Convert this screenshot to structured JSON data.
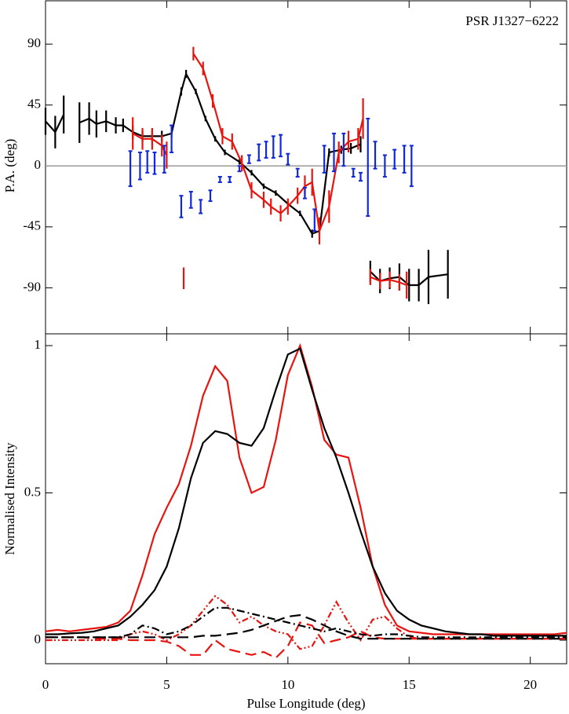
{
  "chart_data": [
    {
      "type": "errorbar-line",
      "title": "PSR J1327−6222",
      "ylabel": "P.A. (deg)",
      "xlim": [
        0,
        21.5
      ],
      "ylim": [
        -124,
        122
      ],
      "yticks": [
        -90,
        -45,
        0,
        45,
        90
      ],
      "reference_line": 0,
      "series": [
        {
          "color": "#000000",
          "line": true,
          "x": [
            0,
            0.4,
            0.75,
            null,
            1.4,
            1.8,
            2.1,
            2.5,
            2.9,
            3.2,
            3.6,
            4.0,
            4.4,
            4.8,
            5.2,
            5.6,
            5.8,
            6.2,
            6.6,
            7.0,
            7.4,
            8.0,
            8.5,
            9.0,
            9.5,
            10.0,
            10.5,
            11.0,
            11.3,
            11.7,
            12.2,
            12.6,
            13.0,
            null,
            13.4,
            13.8,
            14.2,
            14.6,
            15.0,
            15.4,
            15.8,
            16.6
          ],
          "values": [
            33,
            25,
            38,
            null,
            32,
            35,
            31,
            33,
            30,
            30,
            25,
            22,
            22,
            22,
            24,
            55,
            68,
            55,
            35,
            20,
            10,
            3,
            -5,
            -15,
            -20,
            -28,
            -35,
            -50,
            -48,
            10,
            12,
            13,
            16,
            null,
            -78,
            -85,
            -83,
            -82,
            -88,
            -88,
            -82,
            -80
          ],
          "errors": [
            10,
            12,
            14,
            null,
            15,
            12,
            10,
            8,
            6,
            5,
            5,
            4,
            4,
            4,
            3,
            3,
            3,
            2,
            2,
            2,
            2,
            2,
            2,
            2,
            2,
            2,
            2,
            3,
            3,
            3,
            3,
            4,
            6,
            null,
            8,
            9,
            8,
            10,
            12,
            12,
            20,
            18
          ]
        },
        {
          "color": "#e8140f",
          "line": true,
          "x": [
            3.6,
            4.0,
            4.4,
            4.8,
            5.0,
            null,
            5.7,
            null,
            6.1,
            6.5,
            6.9,
            7.3,
            7.7,
            8.1,
            8.5,
            9.0,
            9.3,
            9.7,
            10.0,
            10.4,
            10.7,
            11.0,
            11.3,
            11.7,
            12.1,
            12.5,
            12.9,
            13.1,
            null,
            13.4,
            13.8,
            14.2,
            14.6,
            14.9
          ],
          "values": [
            24,
            20,
            20,
            15,
            8,
            null,
            -83,
            null,
            83,
            72,
            48,
            22,
            18,
            2,
            -18,
            -25,
            -30,
            -35,
            -30,
            -22,
            -15,
            -12,
            -48,
            -30,
            10,
            18,
            20,
            35,
            null,
            -82,
            -85,
            -84,
            -86,
            -88
          ],
          "errors": [
            12,
            8,
            8,
            8,
            10,
            null,
            8,
            null,
            5,
            5,
            5,
            6,
            6,
            6,
            6,
            6,
            6,
            6,
            6,
            6,
            8,
            10,
            10,
            12,
            8,
            8,
            8,
            15,
            null,
            6,
            6,
            6,
            6,
            10
          ]
        },
        {
          "color": "#1028d8",
          "line": false,
          "x": [
            3.5,
            3.9,
            4.2,
            4.5,
            4.9,
            5.2,
            5.6,
            6.0,
            6.4,
            6.8,
            7.2,
            7.6,
            8.0,
            8.4,
            8.8,
            9.1,
            9.4,
            9.7,
            10.0,
            10.4,
            10.7,
            11.1,
            11.5,
            11.9,
            12.3,
            12.7,
            13.0,
            13.3,
            13.6,
            14.0,
            14.4,
            14.8,
            15.1
          ],
          "values": [
            -2,
            0,
            3,
            2,
            5,
            20,
            -30,
            -25,
            -30,
            -22,
            -10,
            -10,
            -2,
            5,
            10,
            12,
            14,
            15,
            5,
            -5,
            -20,
            -40,
            5,
            10,
            12,
            -5,
            -8,
            -1,
            8,
            0,
            5,
            5,
            0
          ],
          "errors": [
            13,
            10,
            8,
            8,
            10,
            10,
            8,
            6,
            5,
            4,
            2,
            2,
            2,
            3,
            6,
            6,
            8,
            8,
            4,
            3,
            4,
            8,
            10,
            14,
            12,
            3,
            3,
            36,
            10,
            8,
            7,
            10,
            15
          ]
        }
      ]
    },
    {
      "type": "line",
      "xlabel": "Pulse Longitude (deg)",
      "ylabel": "Normalised Intensity",
      "xlim": [
        0,
        21.5
      ],
      "ylim": [
        -0.08,
        1.04
      ],
      "xticks": [
        0,
        5,
        10,
        15,
        20
      ],
      "yticks": [
        0,
        0.5,
        1
      ],
      "x": [
        0,
        0.5,
        1,
        1.5,
        2,
        2.5,
        3,
        3.5,
        4,
        4.5,
        5,
        5.5,
        6,
        6.5,
        7,
        7.5,
        8,
        8.5,
        9,
        9.5,
        10,
        10.5,
        11,
        11.5,
        12,
        12.5,
        13,
        13.5,
        14,
        14.5,
        15,
        15.5,
        16,
        16.5,
        17,
        17.5,
        18,
        18.5,
        19,
        19.5,
        20,
        20.5,
        21,
        21.5
      ],
      "series": [
        {
          "color": "#000000",
          "dash": "solid",
          "values": [
            0.02,
            0.02,
            0.023,
            0.025,
            0.03,
            0.04,
            0.05,
            0.08,
            0.12,
            0.17,
            0.25,
            0.38,
            0.55,
            0.67,
            0.71,
            0.7,
            0.67,
            0.66,
            0.72,
            0.85,
            0.97,
            0.99,
            0.85,
            0.72,
            0.62,
            0.5,
            0.37,
            0.25,
            0.16,
            0.1,
            0.07,
            0.05,
            0.04,
            0.03,
            0.025,
            0.02,
            0.02,
            0.015,
            0.015,
            0.015,
            0.015,
            0.015,
            0.015,
            0.015
          ]
        },
        {
          "color": "#e8140f",
          "dash": "solid",
          "values": [
            0.03,
            0.035,
            0.03,
            0.035,
            0.04,
            0.045,
            0.06,
            0.1,
            0.22,
            0.36,
            0.45,
            0.53,
            0.66,
            0.83,
            0.93,
            0.88,
            0.62,
            0.5,
            0.52,
            0.68,
            0.9,
            1.0,
            0.86,
            0.68,
            0.63,
            0.62,
            0.45,
            0.25,
            0.12,
            0.05,
            0.03,
            0.025,
            0.02,
            0.02,
            0.02,
            0.02,
            0.02,
            0.02,
            0.02,
            0.02,
            0.02,
            0.02,
            0.02,
            0.025
          ]
        },
        {
          "color": "#000000",
          "dash": "dashed",
          "values": [
            0.01,
            0.01,
            0.01,
            0.01,
            0.01,
            0.01,
            0.01,
            0.01,
            0.01,
            0.01,
            0.01,
            0.01,
            0.01,
            0.015,
            0.015,
            0.02,
            0.025,
            0.035,
            0.05,
            0.065,
            0.08,
            0.085,
            0.07,
            0.05,
            0.03,
            0.015,
            0.005,
            0.005,
            0.005,
            0.005,
            0.005,
            0.005,
            0.005,
            0.005,
            0.005,
            0.005,
            0.005,
            0.005,
            0.005,
            0.005,
            0.005,
            0.005,
            0.005,
            0.005
          ]
        },
        {
          "color": "#000000",
          "dash": "dashdot",
          "values": [
            0.01,
            0.01,
            0.01,
            0.01,
            0.01,
            0.01,
            0.01,
            0.02,
            0.05,
            0.04,
            0.02,
            0.03,
            0.05,
            0.08,
            0.11,
            0.11,
            0.1,
            0.09,
            0.08,
            0.07,
            0.06,
            0.05,
            0.04,
            0.03,
            0.04,
            0.03,
            0.02,
            0.015,
            0.02,
            0.02,
            0.015,
            0.01,
            0.01,
            0.01,
            0.01,
            0.01,
            0.01,
            0.01,
            0.01,
            0.01,
            0.01,
            0.01,
            0.01,
            0.01
          ]
        },
        {
          "color": "#e8140f",
          "dash": "dashed",
          "values": [
            0.01,
            0.01,
            0.01,
            0.01,
            0.005,
            0.005,
            0.005,
            0,
            0,
            0,
            -0.005,
            -0.02,
            -0.05,
            -0.05,
            0,
            -0.03,
            -0.04,
            -0.05,
            -0.04,
            -0.06,
            -0.02,
            0.06,
            0.05,
            -0.01,
            0,
            0.01,
            0.03,
            0.01,
            0.005,
            0.005,
            0.005,
            0.005,
            0.005,
            0.005,
            0.005,
            0.005,
            0.005,
            0.005,
            0.005,
            0.005,
            0.005,
            0.005,
            0.005,
            0.005
          ]
        },
        {
          "color": "#e8140f",
          "dash": "dashdotdot",
          "values": [
            0,
            0,
            0,
            0,
            0,
            0,
            0,
            0.02,
            0.03,
            0.02,
            0,
            0.02,
            0.05,
            0.1,
            0.15,
            0.12,
            0.06,
            0.08,
            0.05,
            0.03,
            0.02,
            -0.03,
            -0.02,
            0.05,
            0.13,
            0.06,
            0,
            0.07,
            0.08,
            0.04,
            0.01,
            0.005,
            0.005,
            0.005,
            0.005,
            0.005,
            0.005,
            0.005,
            0.005,
            0.005,
            0.005,
            0.005,
            0.005,
            0.005
          ]
        }
      ]
    }
  ]
}
